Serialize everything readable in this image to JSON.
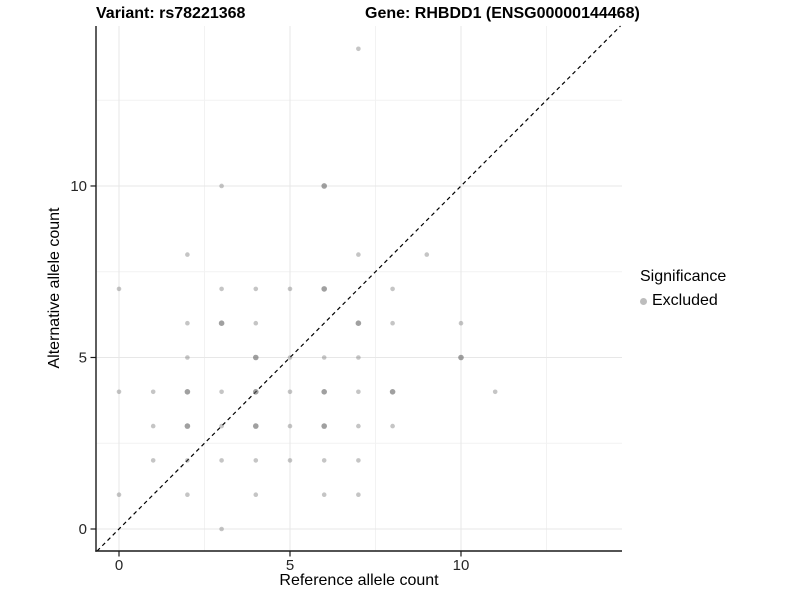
{
  "chart_data": {
    "type": "scatter",
    "title_left": "Variant: rs78221368",
    "title_right": "Gene: RHBDD1 (ENSG00000144468)",
    "xlabel": "Reference allele count",
    "ylabel": "Alternative allele count",
    "xlim": [
      -0.6725,
      14.708
    ],
    "ylim": [
      -0.6414,
      14.664
    ],
    "x_ticks": [
      0,
      5,
      10
    ],
    "y_ticks": [
      0,
      5,
      10
    ],
    "x_minor": [
      2.5,
      7.5,
      12.5
    ],
    "y_minor": [
      2.5,
      7.5,
      12.5
    ],
    "grid": true,
    "diagonal": {
      "slope": 1,
      "intercept": 0,
      "style": "dashed"
    },
    "legend": {
      "title": "Significance",
      "position": "right",
      "items": [
        {
          "label": "Excluded",
          "color": "#bdbdbd"
        }
      ]
    },
    "colors": {
      "point_base": "#666666",
      "grid_major": "#e7e7e7",
      "grid_minor": "#f2f2f2",
      "axis": "#1a1a1a",
      "diagonal": "#000000"
    },
    "points": [
      [
        3,
        0
      ],
      [
        0,
        1
      ],
      [
        2,
        1
      ],
      [
        4,
        1
      ],
      [
        6,
        1
      ],
      [
        7,
        1
      ],
      [
        1,
        2
      ],
      [
        2,
        2
      ],
      [
        3,
        2
      ],
      [
        4,
        2
      ],
      [
        5,
        2
      ],
      [
        6,
        2
      ],
      [
        7,
        2
      ],
      [
        1,
        3
      ],
      [
        2,
        3,
        1
      ],
      [
        3,
        3
      ],
      [
        4,
        3,
        1
      ],
      [
        5,
        3
      ],
      [
        6,
        3,
        1
      ],
      [
        7,
        3
      ],
      [
        8,
        3
      ],
      [
        0,
        4
      ],
      [
        1,
        4
      ],
      [
        2,
        4,
        1
      ],
      [
        3,
        4
      ],
      [
        4,
        4,
        1
      ],
      [
        5,
        4
      ],
      [
        6,
        4,
        1
      ],
      [
        7,
        4
      ],
      [
        8,
        4,
        1
      ],
      [
        11,
        4
      ],
      [
        2,
        5
      ],
      [
        4,
        5,
        1
      ],
      [
        5,
        5
      ],
      [
        6,
        5
      ],
      [
        7,
        5
      ],
      [
        10,
        5,
        1
      ],
      [
        2,
        6
      ],
      [
        3,
        6,
        1
      ],
      [
        4,
        6
      ],
      [
        7,
        6,
        1
      ],
      [
        8,
        6
      ],
      [
        10,
        6
      ],
      [
        0,
        7
      ],
      [
        3,
        7
      ],
      [
        4,
        7
      ],
      [
        5,
        7
      ],
      [
        6,
        7,
        1
      ],
      [
        8,
        7
      ],
      [
        2,
        8
      ],
      [
        7,
        8
      ],
      [
        9,
        8
      ],
      [
        3,
        10
      ],
      [
        6,
        10,
        1
      ],
      [
        7,
        14
      ]
    ]
  }
}
